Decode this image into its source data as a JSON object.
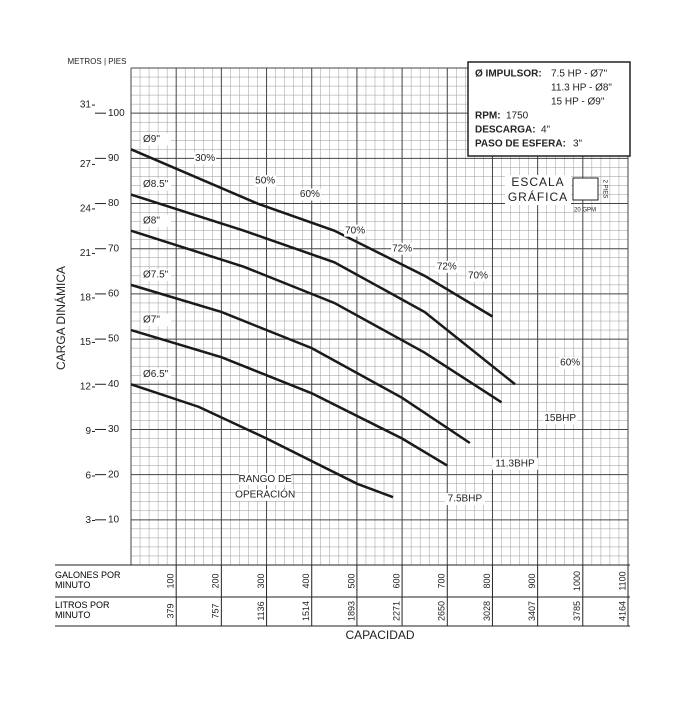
{
  "chart_data": {
    "type": "line",
    "y_label": "CARGA DINÁMICA",
    "x_label": "CAPACIDAD",
    "y_axis_header": "METROS | PIES",
    "x_row_label": "GALONES POR MINUTO",
    "x2_row_label": "LITROS POR MINUTO",
    "xlim": [
      0,
      1100
    ],
    "xticks": [
      100,
      200,
      300,
      400,
      500,
      600,
      700,
      800,
      900,
      1000,
      1100
    ],
    "x2lim": [
      0,
      4164
    ],
    "x2ticks": [
      379,
      757,
      1136,
      1514,
      1893,
      2271,
      2650,
      3028,
      3407,
      3785,
      4164
    ],
    "ylim": [
      0,
      110
    ],
    "yticks": [
      10,
      20,
      30,
      40,
      50,
      60,
      70,
      80,
      90,
      100
    ],
    "y2lim": [
      0,
      33.5
    ],
    "y2ticks": [
      3,
      6,
      9,
      12,
      15,
      18,
      21,
      24,
      27,
      31
    ],
    "grid": true,
    "minor_divisions": 5,
    "series": [
      {
        "name": "Ø9\"",
        "color": "#1a1a1a",
        "x": [
          0,
          280,
          450,
          650,
          800
        ],
        "values": [
          92,
          80,
          74,
          64,
          55
        ]
      },
      {
        "name": "Ø8.5\"",
        "color": "#1a1a1a",
        "x": [
          0,
          250,
          450,
          650,
          850
        ],
        "values": [
          82,
          74,
          67,
          56,
          40
        ]
      },
      {
        "name": "Ø8\"",
        "color": "#1a1a1a",
        "x": [
          0,
          250,
          450,
          650,
          820
        ],
        "values": [
          74,
          66,
          58,
          47,
          36
        ]
      },
      {
        "name": "Ø7.5\"",
        "color": "#1a1a1a",
        "x": [
          0,
          200,
          400,
          600,
          750
        ],
        "values": [
          62,
          56,
          48,
          37,
          27
        ]
      },
      {
        "name": "Ø7\"",
        "color": "#1a1a1a",
        "x": [
          0,
          200,
          400,
          600,
          700
        ],
        "values": [
          52,
          46,
          38,
          28,
          22
        ]
      },
      {
        "name": "Ø6.5\"",
        "color": "#1a1a1a",
        "x": [
          0,
          150,
          300,
          500,
          580
        ],
        "values": [
          40,
          35,
          28,
          18,
          15
        ]
      }
    ],
    "annotations": [
      {
        "text": "30%",
        "x": 164,
        "y": 90
      },
      {
        "text": "50%",
        "x": 297,
        "y": 85
      },
      {
        "text": "60%",
        "x": 396,
        "y": 82
      },
      {
        "text": "70%",
        "x": 496,
        "y": 74
      },
      {
        "text": "72%",
        "x": 600,
        "y": 70
      },
      {
        "text": "72%",
        "x": 699,
        "y": 66
      },
      {
        "text": "70%",
        "x": 768,
        "y": 64
      },
      {
        "text": "60%",
        "x": 972,
        "y": 44.7
      },
      {
        "text": "15BHP",
        "x": 950,
        "y": 32.5
      },
      {
        "text": "11.3BHP",
        "x": 850,
        "y": 22.4
      },
      {
        "text": "7.5BHP",
        "x": 739,
        "y": 14.6
      },
      {
        "text": "RANGO DE",
        "x": 297,
        "y": 19
      },
      {
        "text": "OPERACIÓN",
        "x": 297,
        "y": 15.5
      }
    ]
  },
  "info_box": {
    "impulsor_label": "Ø IMPULSOR:",
    "impulsor_lines": [
      "7.5 HP - Ø7\"",
      "11.3 HP - Ø8\"",
      "15 HP - Ø9\""
    ],
    "rpm_label": "RPM:",
    "rpm": "1750",
    "descarga_label": "DESCARGA:",
    "descarga": "4\"",
    "paso_label": "PASO DE ESFERA:",
    "paso": "3\""
  },
  "scale_box": {
    "line1": "ESCALA",
    "line2": "GRÁFICA",
    "height": "2 PIES",
    "width": "20 GPM"
  }
}
